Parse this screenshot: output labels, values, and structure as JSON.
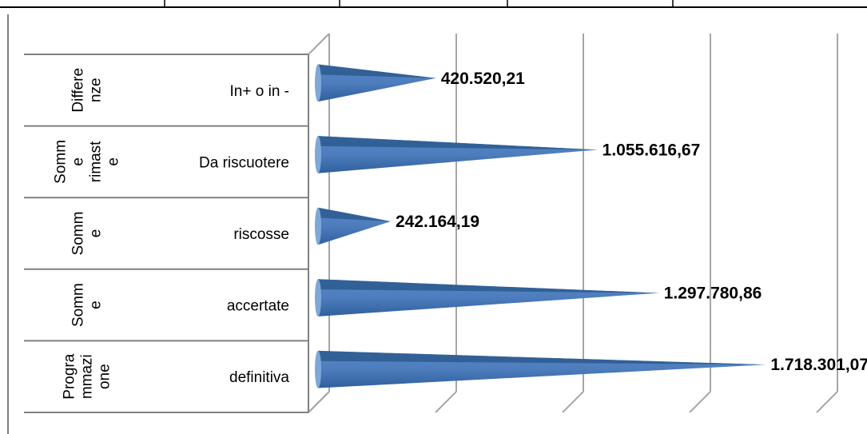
{
  "chart_data": {
    "type": "bar",
    "orientation": "horizontal",
    "style": "3d-cone",
    "categories": [
      {
        "group": [
          "Differe",
          "nze"
        ],
        "label": "In+ o in -"
      },
      {
        "group": [
          "Somm",
          "e",
          "rimast",
          "e"
        ],
        "label": "Da riscuotere"
      },
      {
        "group": [
          "Somm",
          "e"
        ],
        "label": "riscosse"
      },
      {
        "group": [
          "Somm",
          "e"
        ],
        "label": "accertate"
      },
      {
        "group": [
          "Progra",
          "mmazi",
          "one"
        ],
        "label": "definitiva"
      }
    ],
    "values": [
      420520.21,
      1055616.67,
      242164.19,
      1297780.86,
      1718301.07
    ],
    "value_labels": [
      "420.520,21",
      "1.055.616,67",
      "242.164,19",
      "1.297.780,86",
      "1.718.301,07"
    ],
    "xlim": [
      0,
      2000000
    ],
    "grid": true,
    "legend": "none",
    "colors": {
      "bar": "#4f81bd",
      "bar_dark": "#2c5a8f",
      "bar_light": "#7fa8d8",
      "grid": "#a6a6a6"
    }
  }
}
